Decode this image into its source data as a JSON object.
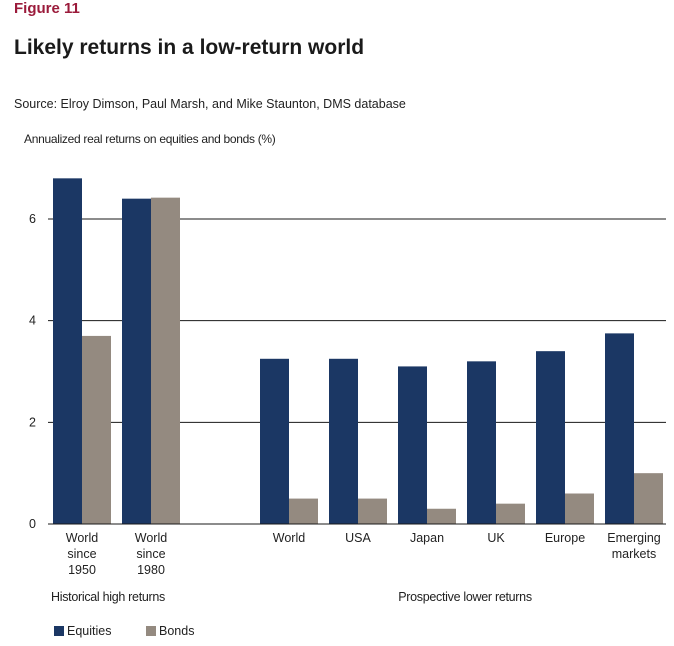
{
  "figure_label": "Figure 11",
  "title": "Likely returns in a low-return world",
  "source": "Source: Elroy Dimson, Paul Marsh, and Mike Staunton, DMS database",
  "chart_data": {
    "type": "bar",
    "title": "Annualized real returns on equities and bonds (%)",
    "categories": [
      [
        "World",
        "since",
        "1950"
      ],
      [
        "World",
        "since",
        "1980"
      ],
      [
        "World"
      ],
      [
        "USA"
      ],
      [
        "Japan"
      ],
      [
        "UK"
      ],
      [
        "Europe"
      ],
      [
        "Emerging",
        "markets"
      ]
    ],
    "groups": [
      {
        "label": "Historical high returns",
        "categories": [
          0,
          1
        ]
      },
      {
        "label": "Prospective lower returns",
        "categories": [
          2,
          3,
          4,
          5,
          6,
          7
        ]
      }
    ],
    "series": [
      {
        "name": "Equities",
        "color": "#1b3764",
        "values": [
          6.8,
          6.4,
          3.25,
          3.25,
          3.1,
          3.2,
          3.4,
          3.75
        ]
      },
      {
        "name": "Bonds",
        "color": "#948a80",
        "values": [
          3.7,
          6.42,
          0.5,
          0.5,
          0.3,
          0.4,
          0.6,
          1.0
        ]
      }
    ],
    "yticks": [
      0,
      2,
      4,
      6
    ],
    "ylim": [
      0,
      7
    ],
    "grid": true,
    "legend_position": "bottom-left"
  }
}
